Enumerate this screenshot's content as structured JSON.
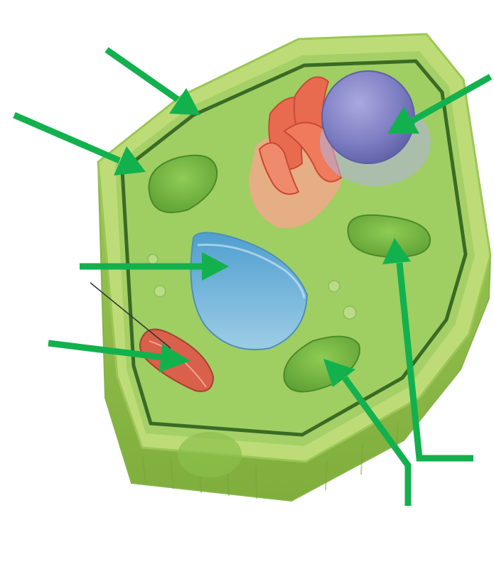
{
  "diagram": {
    "subject": "plant-cell",
    "labels": [],
    "colors": {
      "arrow": "#12b14e",
      "wall_outer": "#a8cf5e",
      "wall_top": "#c4e07f",
      "wall_side": "#8cbc48",
      "cytoplasm": "#9fce63",
      "membrane": "#3a6b24",
      "chloroplast": "#6fb43f",
      "nucleus": "#7f7fc4",
      "vacuole": "#69aed6",
      "golgi": "#e86b4f",
      "mitochondrion": "#d9604a"
    }
  }
}
